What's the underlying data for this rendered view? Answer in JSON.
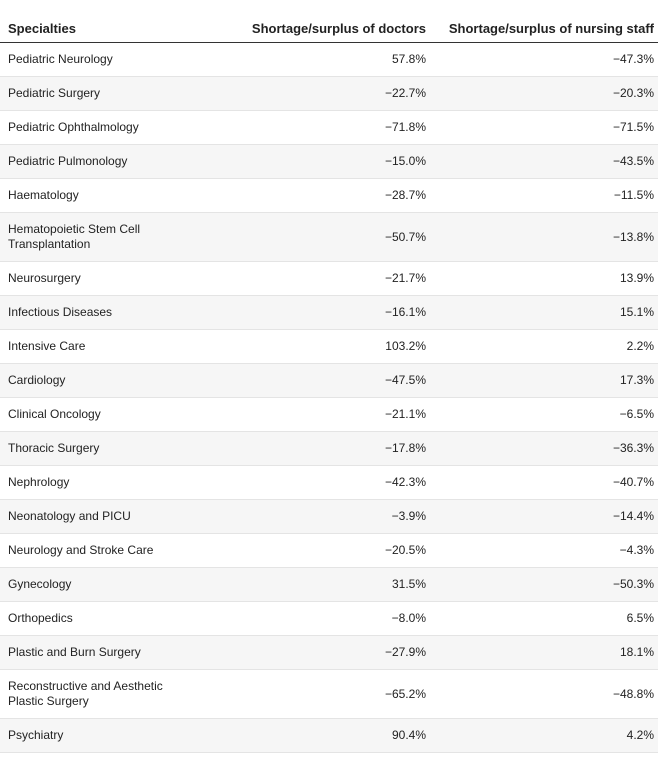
{
  "chart_data": {
    "type": "table",
    "columns": [
      "Specialties",
      "Shortage/surplus of doctors",
      "Shortage/surplus of nursing staff"
    ],
    "rows": [
      {
        "specialty": "Pediatric Neurology",
        "doctors": "57.8%",
        "nursing": "−47.3%"
      },
      {
        "specialty": "Pediatric Surgery",
        "doctors": "−22.7%",
        "nursing": "−20.3%"
      },
      {
        "specialty": "Pediatric Ophthalmology",
        "doctors": "−71.8%",
        "nursing": "−71.5%"
      },
      {
        "specialty": "Pediatric Pulmonology",
        "doctors": "−15.0%",
        "nursing": "−43.5%"
      },
      {
        "specialty": "Haematology",
        "doctors": "−28.7%",
        "nursing": "−11.5%"
      },
      {
        "specialty": "Hematopoietic Stem Cell Transplantation",
        "doctors": "−50.7%",
        "nursing": "−13.8%"
      },
      {
        "specialty": "Neurosurgery",
        "doctors": "−21.7%",
        "nursing": "13.9%"
      },
      {
        "specialty": "Infectious Diseases",
        "doctors": "−16.1%",
        "nursing": "15.1%"
      },
      {
        "specialty": "Intensive Care",
        "doctors": "103.2%",
        "nursing": "2.2%"
      },
      {
        "specialty": "Cardiology",
        "doctors": "−47.5%",
        "nursing": "17.3%"
      },
      {
        "specialty": "Clinical Oncology",
        "doctors": "−21.1%",
        "nursing": "−6.5%"
      },
      {
        "specialty": "Thoracic Surgery",
        "doctors": "−17.8%",
        "nursing": "−36.3%"
      },
      {
        "specialty": "Nephrology",
        "doctors": "−42.3%",
        "nursing": "−40.7%"
      },
      {
        "specialty": "Neonatology and PICU",
        "doctors": "−3.9%",
        "nursing": "−14.4%"
      },
      {
        "specialty": "Neurology and Stroke Care",
        "doctors": "−20.5%",
        "nursing": "−4.3%"
      },
      {
        "specialty": "Gynecology",
        "doctors": "31.5%",
        "nursing": "−50.3%"
      },
      {
        "specialty": "Orthopedics",
        "doctors": "−8.0%",
        "nursing": "6.5%"
      },
      {
        "specialty": "Plastic and Burn Surgery",
        "doctors": "−27.9%",
        "nursing": "18.1%"
      },
      {
        "specialty": "Reconstructive and Aesthetic Plastic Surgery",
        "doctors": "−65.2%",
        "nursing": "−48.8%"
      },
      {
        "specialty": "Psychiatry",
        "doctors": "90.4%",
        "nursing": "4.2%"
      }
    ]
  }
}
